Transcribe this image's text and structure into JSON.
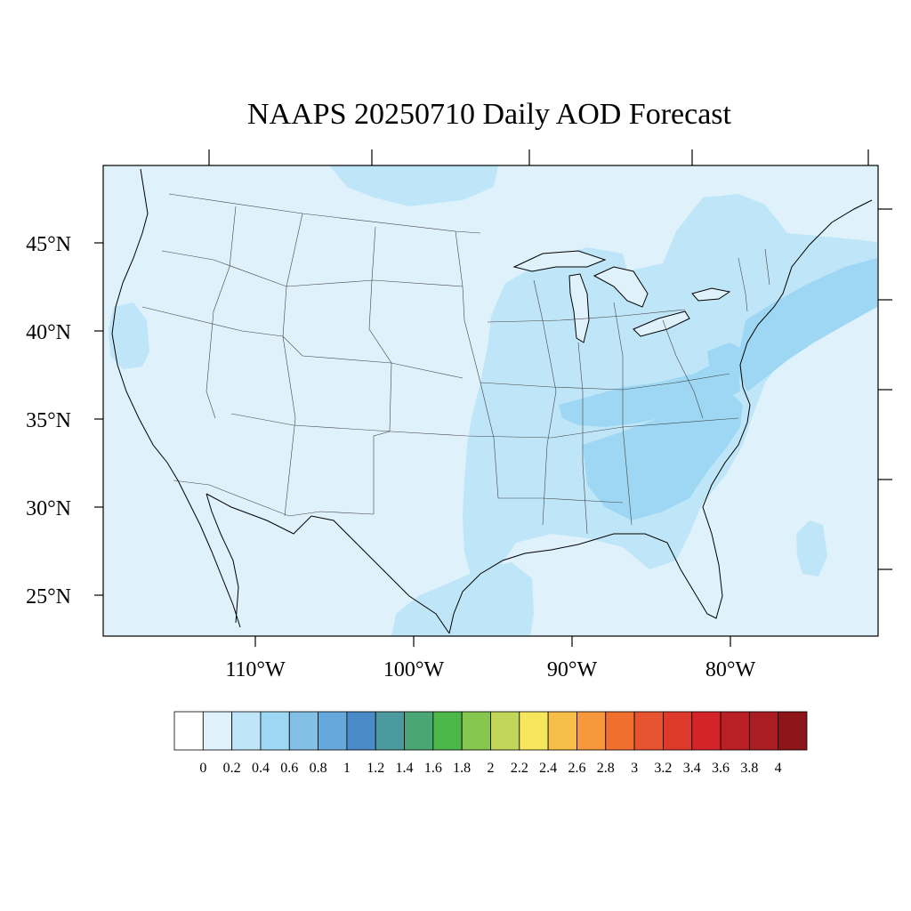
{
  "title": "NAAPS 20250710 Daily AOD Forecast",
  "map": {
    "lat_labels": [
      "45°N",
      "40°N",
      "35°N",
      "30°N",
      "25°N"
    ],
    "lon_labels": [
      "110°W",
      "100°W",
      "90°W",
      "80°W"
    ],
    "background_color": "#dff1fb",
    "aod_zones": [
      {
        "region": "upper midwest / great lakes",
        "aod_class": "0.2-0.4"
      },
      {
        "region": "eastern US / appalachians",
        "aod_class": "0.2-0.4"
      },
      {
        "region": "southeast US (georgia / south carolina)",
        "aod_class": "0.4-0.6"
      },
      {
        "region": "tennessee / kentucky corridor",
        "aod_class": "0.4-0.6"
      },
      {
        "region": "northeast coastal plume (atlantic)",
        "aod_class": "0.4-0.6"
      },
      {
        "region": "northern california coast",
        "aod_class": "0.2-0.4"
      },
      {
        "region": "western gulf of mexico",
        "aod_class": "0.2-0.4"
      }
    ]
  },
  "colorbar": {
    "colors": [
      "#ffffff",
      "#dff1fb",
      "#bfe6f8",
      "#9dd7f3",
      "#82c0e6",
      "#67a8dc",
      "#4a8ac6",
      "#4a9aa0",
      "#48a775",
      "#4db84a",
      "#86c54e",
      "#c2d65a",
      "#f6e65c",
      "#f7bf4a",
      "#f6993d",
      "#f06e2e",
      "#e7532e",
      "#de3a2b",
      "#d42329",
      "#bb1f26",
      "#a91d23",
      "#8d1519"
    ],
    "tick_labels": [
      "0",
      "0.2",
      "0.4",
      "0.6",
      "0.8",
      "1",
      "1.2",
      "1.4",
      "1.6",
      "1.8",
      "2",
      "2.2",
      "2.4",
      "2.6",
      "2.8",
      "3",
      "3.2",
      "3.4",
      "3.6",
      "3.8",
      "4"
    ]
  }
}
